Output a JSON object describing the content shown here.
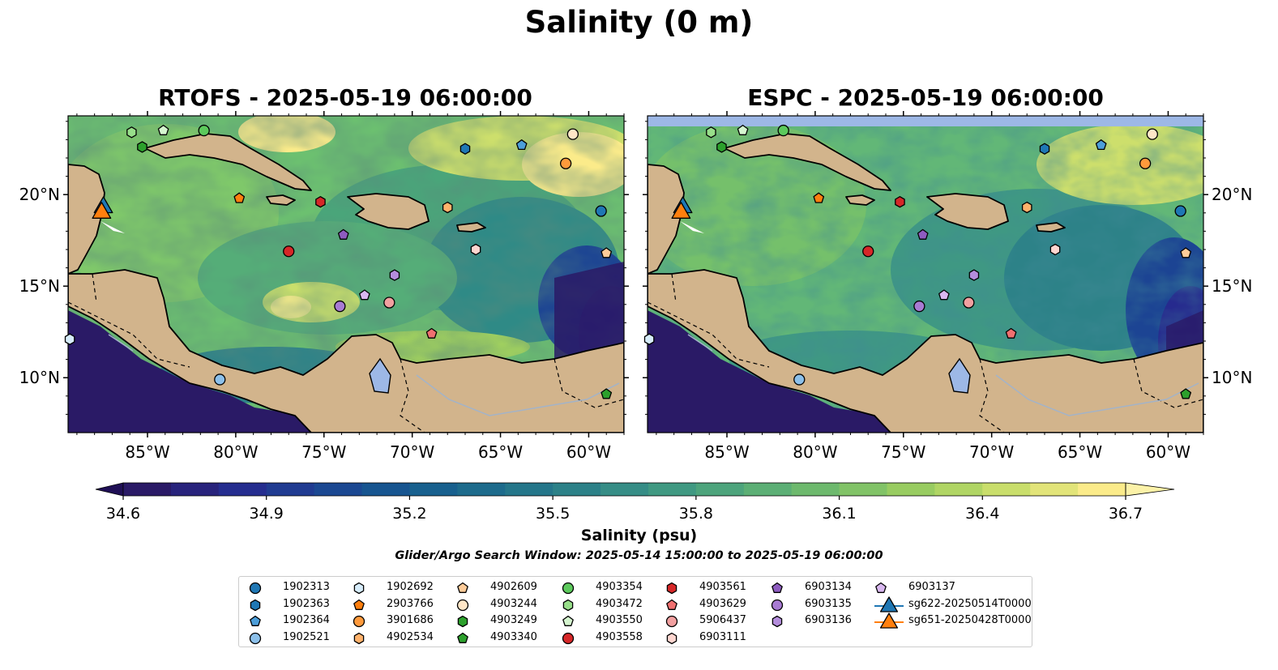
{
  "figure": {
    "title": "Salinity (0 m)",
    "panels": [
      {
        "title": "RTOFS - 2025-05-19 06:00:00"
      },
      {
        "title": "ESPC - 2025-05-19 06:00:00"
      }
    ],
    "lon_ticks": [
      "85°W",
      "80°W",
      "75°W",
      "70°W",
      "65°W",
      "60°W"
    ],
    "lat_ticks": [
      "20°N",
      "15°N",
      "10°N"
    ],
    "extent": {
      "lon": [
        -89.5,
        -58.0
      ],
      "lat": [
        7.0,
        24.3
      ]
    },
    "colors": {
      "land": "#d2b48c",
      "water_body": "#9db8e6",
      "out_of_range_low": "#2a1a66",
      "out_of_range_high": "#ffef9a"
    }
  },
  "colorbar": {
    "label": "Salinity (psu)",
    "ticks": [
      "34.6",
      "34.9",
      "35.2",
      "35.5",
      "35.8",
      "36.1",
      "36.4",
      "36.7"
    ],
    "vmin": 34.6,
    "vmax": 36.7,
    "extend": "both",
    "colormap": "haline",
    "stops": [
      "#2a1a66",
      "#262a8e",
      "#1c4493",
      "#155a8f",
      "#1e6e8b",
      "#2d8288",
      "#3f9883",
      "#57ac77",
      "#77be69",
      "#a0d05f",
      "#cddf6c",
      "#fbeb8a"
    ]
  },
  "search_window": "Glider/Argo Search Window: 2025-05-14 15:00:00 to 2025-05-19 06:00:00",
  "legend": {
    "items": [
      {
        "label": "1902313",
        "marker": "circle",
        "color": "#1f77b4"
      },
      {
        "label": "1902363",
        "marker": "hexagon",
        "color": "#1f77b4"
      },
      {
        "label": "1902364",
        "marker": "pentagon",
        "color": "#4c9ed9"
      },
      {
        "label": "1902521",
        "marker": "circle",
        "color": "#8cc0ea"
      },
      {
        "label": "1902692",
        "marker": "hexagon",
        "color": "#d6ecfa"
      },
      {
        "label": "2903766",
        "marker": "pentagon",
        "color": "#ff7f0e"
      },
      {
        "label": "3901686",
        "marker": "circle",
        "color": "#ff9a3c"
      },
      {
        "label": "4902534",
        "marker": "hexagon",
        "color": "#ffb26b"
      },
      {
        "label": "4902609",
        "marker": "pentagon",
        "color": "#ffcc99"
      },
      {
        "label": "4903244",
        "marker": "circle",
        "color": "#ffe6c7"
      },
      {
        "label": "4903249",
        "marker": "hexagon",
        "color": "#2ca02c"
      },
      {
        "label": "4903340",
        "marker": "pentagon",
        "color": "#2ca02c"
      },
      {
        "label": "4903354",
        "marker": "circle",
        "color": "#5cc95c"
      },
      {
        "label": "4903472",
        "marker": "hexagon",
        "color": "#98df8a"
      },
      {
        "label": "4903550",
        "marker": "pentagon",
        "color": "#d5f5cf"
      },
      {
        "label": "4903558",
        "marker": "circle",
        "color": "#d62728"
      },
      {
        "label": "4903561",
        "marker": "hexagon",
        "color": "#d62728"
      },
      {
        "label": "4903629",
        "marker": "pentagon",
        "color": "#f07070"
      },
      {
        "label": "5906437",
        "marker": "circle",
        "color": "#f2a0a0"
      },
      {
        "label": "6903111",
        "marker": "hexagon",
        "color": "#ffd6d0"
      },
      {
        "label": "6903134",
        "marker": "pentagon",
        "color": "#8e5cc0"
      },
      {
        "label": "6903135",
        "marker": "circle",
        "color": "#a87bd3"
      },
      {
        "label": "6903136",
        "marker": "hexagon",
        "color": "#b48ddc"
      },
      {
        "label": "6903137",
        "marker": "pentagon",
        "color": "#d9b8f0"
      },
      {
        "label": "sg622-20250514T0000",
        "marker": "triangle",
        "color": "#1f77b4"
      },
      {
        "label": "sg651-20250428T0000",
        "marker": "triangle",
        "color": "#ff7f0e"
      }
    ]
  },
  "observations": [
    {
      "id": "1902313",
      "lon": -59.3,
      "lat": 19.1
    },
    {
      "id": "1902363",
      "lon": -67.0,
      "lat": 22.5
    },
    {
      "id": "1902364",
      "lon": -63.8,
      "lat": 22.7
    },
    {
      "id": "1902521",
      "lon": -80.9,
      "lat": 9.9
    },
    {
      "id": "1902692",
      "lon": -89.4,
      "lat": 12.1
    },
    {
      "id": "2903766",
      "lon": -79.8,
      "lat": 19.8
    },
    {
      "id": "3901686",
      "lon": -61.3,
      "lat": 21.7
    },
    {
      "id": "4902534",
      "lon": -68.0,
      "lat": 19.3
    },
    {
      "id": "4902609",
      "lon": -59.0,
      "lat": 16.8
    },
    {
      "id": "4903244",
      "lon": -60.9,
      "lat": 23.3
    },
    {
      "id": "4903249",
      "lon": -85.3,
      "lat": 22.6
    },
    {
      "id": "4903340",
      "lon": -59.0,
      "lat": 9.1
    },
    {
      "id": "4903354",
      "lon": -81.8,
      "lat": 23.5
    },
    {
      "id": "4903472",
      "lon": -85.9,
      "lat": 23.4
    },
    {
      "id": "4903550",
      "lon": -84.1,
      "lat": 23.5
    },
    {
      "id": "4903558",
      "lon": -77.0,
      "lat": 16.9
    },
    {
      "id": "4903561",
      "lon": -75.2,
      "lat": 19.6
    },
    {
      "id": "4903629",
      "lon": -68.9,
      "lat": 12.4
    },
    {
      "id": "5906437",
      "lon": -71.3,
      "lat": 14.1
    },
    {
      "id": "6903111",
      "lon": -66.4,
      "lat": 17.0
    },
    {
      "id": "6903134",
      "lon": -73.9,
      "lat": 17.8
    },
    {
      "id": "6903135",
      "lon": -74.1,
      "lat": 13.9
    },
    {
      "id": "6903136",
      "lon": -71.0,
      "lat": 15.6
    },
    {
      "id": "6903137",
      "lon": -72.7,
      "lat": 14.5
    },
    {
      "id": "sg622-20250514T0000",
      "lon": -87.5,
      "lat": 19.3
    },
    {
      "id": "sg651-20250428T0000",
      "lon": -87.6,
      "lat": 19.0
    }
  ]
}
